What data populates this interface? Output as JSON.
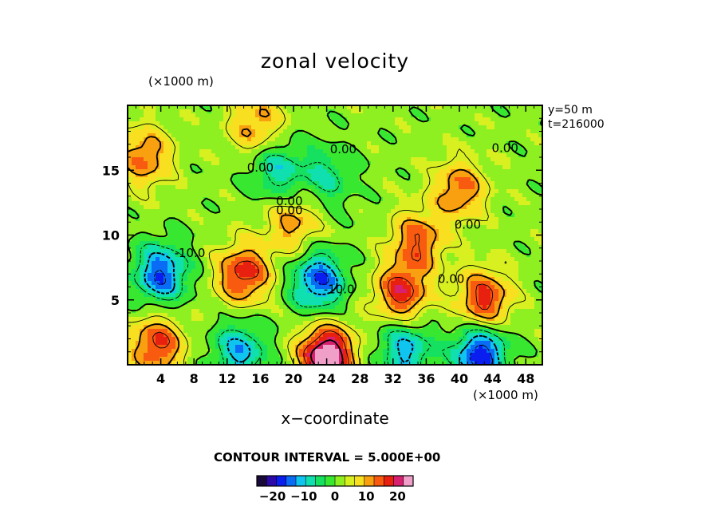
{
  "title": "zonal velocity",
  "x_unit": "(×1000 m)",
  "y_unit": "(×1000 m)",
  "xlabel": "x−coordinate",
  "meta_y": "y=50 m",
  "meta_t": "t=216000",
  "contour_interval": "CONTOUR INTERVAL = 5.000E+00",
  "chart_data": {
    "type": "heatmap",
    "title": "zonal velocity",
    "xlabel": "x−coordinate",
    "x_unit": "(×1000 m)",
    "y_unit": "(×1000 m)",
    "xlim": [
      0,
      50
    ],
    "ylim": [
      0,
      20
    ],
    "x_ticks": [
      4,
      8,
      12,
      16,
      20,
      24,
      28,
      32,
      36,
      40,
      44,
      48
    ],
    "y_ticks": [
      5,
      10,
      15
    ],
    "contour_interval": 5.0,
    "contour_labels": [
      {
        "text": "0.00",
        "x": 26,
        "y": 16.3
      },
      {
        "text": "0.00",
        "x": 16,
        "y": 14.9
      },
      {
        "text": "0.00",
        "x": 19.5,
        "y": 12.3
      },
      {
        "text": "0.00",
        "x": 19.5,
        "y": 11.6
      },
      {
        "text": "0.00",
        "x": 41,
        "y": 10.5
      },
      {
        "text": "0.00",
        "x": 45.5,
        "y": 16.4
      },
      {
        "text": "-10.0",
        "x": 7.5,
        "y": 8.3
      },
      {
        "text": "-10.0",
        "x": 25.5,
        "y": 5.5
      },
      {
        "text": "0.00",
        "x": 39,
        "y": 6.3
      }
    ],
    "features": [
      {
        "x": 4,
        "y": 7,
        "value": -17
      },
      {
        "x": 14,
        "y": 7,
        "value": 16
      },
      {
        "x": 23,
        "y": 6.5,
        "value": -17
      },
      {
        "x": 33,
        "y": 5.5,
        "value": 16
      },
      {
        "x": 43,
        "y": 5,
        "value": 16
      },
      {
        "x": 3.5,
        "y": 1.5,
        "value": 15
      },
      {
        "x": 13.5,
        "y": 1,
        "value": -13
      },
      {
        "x": 24,
        "y": 0.7,
        "value": 25
      },
      {
        "x": 33.5,
        "y": 1.2,
        "value": -13
      },
      {
        "x": 42.5,
        "y": 0.8,
        "value": -20
      },
      {
        "x": 15.5,
        "y": 18.5,
        "value": 10
      },
      {
        "x": 18,
        "y": 15,
        "value": -10
      },
      {
        "x": 24,
        "y": 14.5,
        "value": -8
      },
      {
        "x": 40,
        "y": 13.5,
        "value": 12
      },
      {
        "x": 2,
        "y": 16,
        "value": 12
      },
      {
        "x": 35,
        "y": 9.5,
        "value": 13
      },
      {
        "x": 20,
        "y": 10.8,
        "value": 10
      }
    ],
    "colorbar": {
      "min": -25,
      "max": 25,
      "ticks": [
        -20,
        -10,
        0,
        10,
        20
      ],
      "colors": [
        "#1a0a3a",
        "#2b0aa8",
        "#0a1ef0",
        "#0a6cf5",
        "#10c4f0",
        "#10e0b0",
        "#16e060",
        "#38e830",
        "#8ef020",
        "#d8f020",
        "#f8e020",
        "#f8a010",
        "#f85a10",
        "#e82010",
        "#d82070",
        "#f0a0c8"
      ]
    }
  }
}
